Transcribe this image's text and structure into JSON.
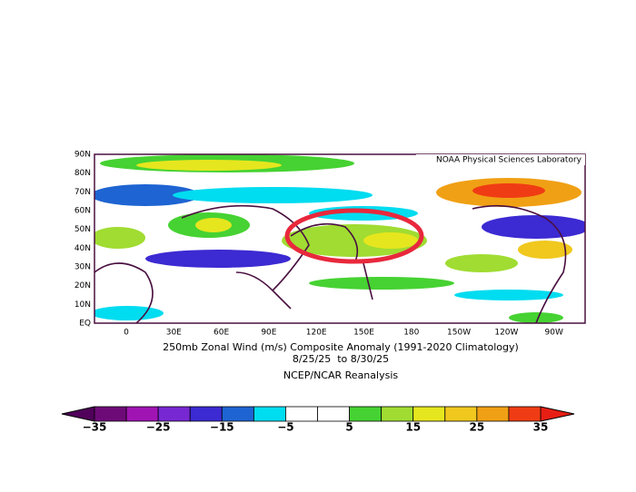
{
  "header": {
    "credit": "NOAA Physical Sciences Laboratory"
  },
  "map": {
    "lat_labels": [
      "90N",
      "80N",
      "70N",
      "60N",
      "50N",
      "40N",
      "30N",
      "20N",
      "10N",
      "EQ"
    ],
    "lon_labels": [
      "0",
      "30E",
      "60E",
      "90E",
      "120E",
      "150E",
      "180",
      "150W",
      "120W",
      "90W"
    ]
  },
  "caption": {
    "title": "250mb Zonal Wind (m/s) Composite Anomaly (1991-2020 Climatology)",
    "dates": "8/25/25  to 8/30/25",
    "source": "NCEP/NCAR Reanalysis"
  },
  "colorbar": {
    "labels": [
      "−35",
      "−25",
      "−15",
      "−5",
      "5",
      "15",
      "25",
      "35"
    ],
    "colors": [
      "#6e0a78",
      "#a014b4",
      "#7828d2",
      "#3c2ad2",
      "#1e64d2",
      "#00dcf0",
      "#ffffff",
      "#ffffff",
      "#46d232",
      "#a0dc32",
      "#e6e61e",
      "#f0c81e",
      "#f0a014",
      "#f03c14"
    ]
  }
}
